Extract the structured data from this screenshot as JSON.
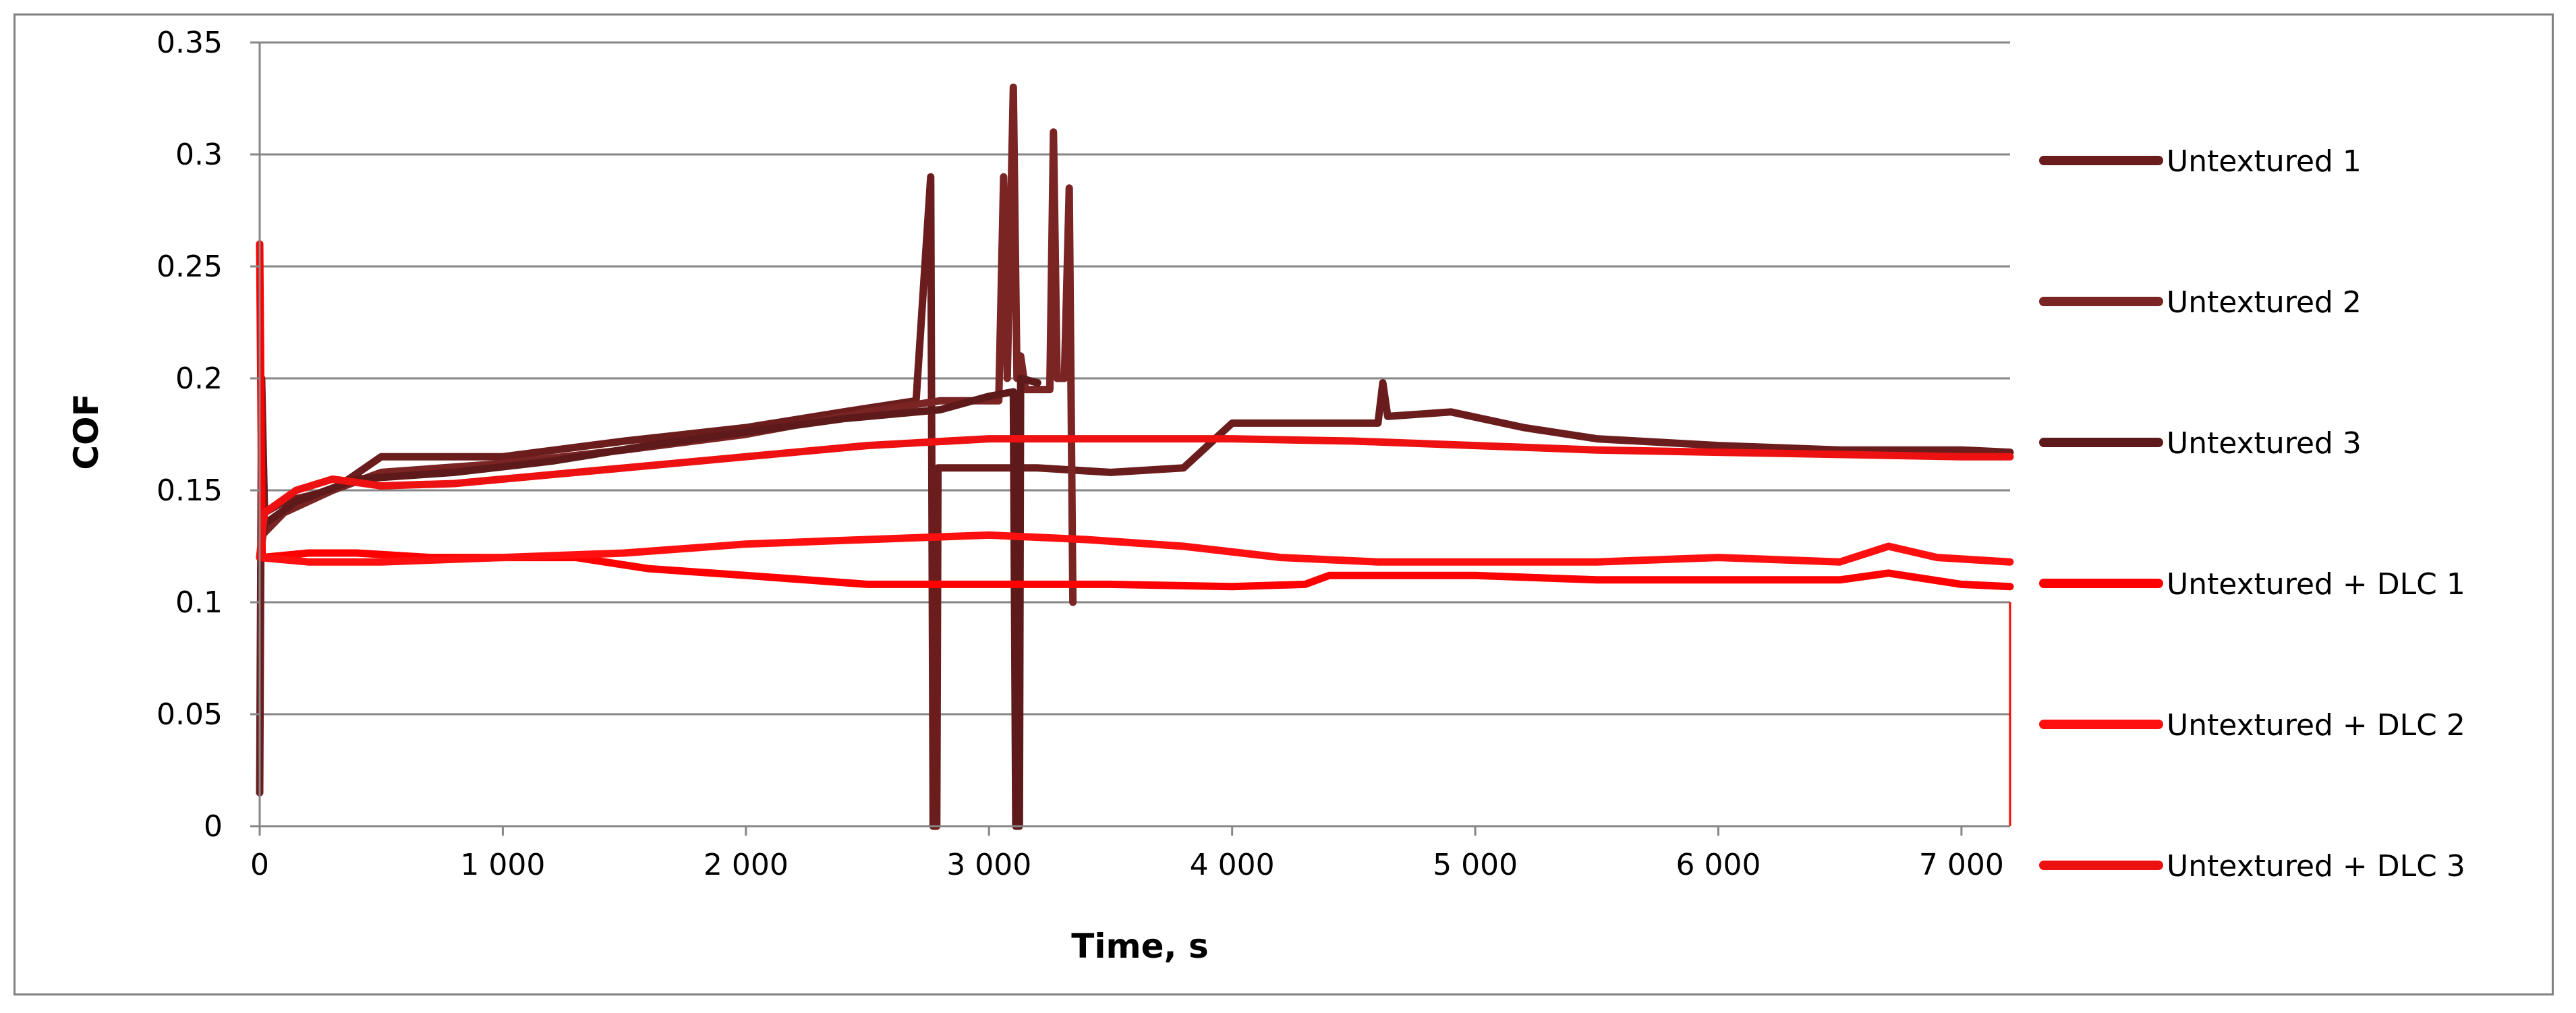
{
  "chart_data": {
    "type": "line",
    "xlabel": "Time, s",
    "ylabel": "COF",
    "xlim": [
      0,
      7200
    ],
    "ylim": [
      0,
      0.35
    ],
    "x_ticks": [
      0,
      1000,
      2000,
      3000,
      4000,
      5000,
      6000,
      7000
    ],
    "x_tick_labels": [
      "0",
      "1 000",
      "2 000",
      "3 000",
      "4 000",
      "5 000",
      "6 000",
      "7 000"
    ],
    "y_ticks": [
      0,
      0.05,
      0.1,
      0.15,
      0.2,
      0.25,
      0.3,
      0.35
    ],
    "y_tick_labels": [
      "0",
      "0.05",
      "0.1",
      "0.15",
      "0.2",
      "0.25",
      "0.3",
      "0.35"
    ],
    "grid": "horizontal",
    "legend_position": "right",
    "series": [
      {
        "name": "Untextured 1",
        "color": "#6b1d1d",
        "points": [
          [
            0,
            0.015
          ],
          [
            8,
            0.2
          ],
          [
            20,
            0.14
          ],
          [
            100,
            0.145
          ],
          [
            300,
            0.15
          ],
          [
            500,
            0.165
          ],
          [
            800,
            0.165
          ],
          [
            1000,
            0.165
          ],
          [
            1500,
            0.172
          ],
          [
            2000,
            0.178
          ],
          [
            2400,
            0.185
          ],
          [
            2700,
            0.19
          ],
          [
            2760,
            0.29
          ],
          [
            2770,
            0
          ],
          [
            2785,
            0
          ],
          [
            2790,
            0.16
          ],
          [
            3000,
            0.16
          ],
          [
            3200,
            0.16
          ],
          [
            3500,
            0.158
          ],
          [
            3800,
            0.16
          ],
          [
            3900,
            0.17
          ],
          [
            4000,
            0.18
          ],
          [
            4300,
            0.18
          ],
          [
            4500,
            0.18
          ],
          [
            4600,
            0.18
          ],
          [
            4620,
            0.198
          ],
          [
            4640,
            0.183
          ],
          [
            4900,
            0.185
          ],
          [
            5200,
            0.178
          ],
          [
            5500,
            0.173
          ],
          [
            6000,
            0.17
          ],
          [
            6500,
            0.168
          ],
          [
            7000,
            0.168
          ],
          [
            7200,
            0.167
          ]
        ]
      },
      {
        "name": "Untextured 2",
        "color": "#7a2424",
        "points": [
          [
            0,
            0.12
          ],
          [
            10,
            0.13
          ],
          [
            100,
            0.14
          ],
          [
            300,
            0.15
          ],
          [
            500,
            0.158
          ],
          [
            1000,
            0.162
          ],
          [
            1500,
            0.168
          ],
          [
            2000,
            0.175
          ],
          [
            2500,
            0.185
          ],
          [
            2800,
            0.19
          ],
          [
            3000,
            0.19
          ],
          [
            3040,
            0.19
          ],
          [
            3060,
            0.29
          ],
          [
            3075,
            0.2
          ],
          [
            3100,
            0.33
          ],
          [
            3115,
            0.2
          ],
          [
            3130,
            0.21
          ],
          [
            3150,
            0.195
          ],
          [
            3250,
            0.195
          ],
          [
            3265,
            0.31
          ],
          [
            3280,
            0.2
          ],
          [
            3310,
            0.2
          ],
          [
            3330,
            0.285
          ],
          [
            3345,
            0.1
          ]
        ]
      },
      {
        "name": "Untextured 3",
        "color": "#5e1a1a",
        "points": [
          [
            0,
            0.12
          ],
          [
            20,
            0.135
          ],
          [
            150,
            0.145
          ],
          [
            400,
            0.155
          ],
          [
            800,
            0.158
          ],
          [
            1200,
            0.163
          ],
          [
            1600,
            0.17
          ],
          [
            2000,
            0.176
          ],
          [
            2400,
            0.182
          ],
          [
            2800,
            0.186
          ],
          [
            3000,
            0.192
          ],
          [
            3100,
            0.194
          ],
          [
            3110,
            0
          ],
          [
            3125,
            0
          ],
          [
            3130,
            0.2
          ],
          [
            3200,
            0.198
          ]
        ]
      },
      {
        "name": "Untextured + DLC 1",
        "color": "#ff0000",
        "points": [
          [
            0,
            0.26
          ],
          [
            10,
            0.12
          ],
          [
            200,
            0.122
          ],
          [
            400,
            0.122
          ],
          [
            700,
            0.12
          ],
          [
            1000,
            0.12
          ],
          [
            1300,
            0.12
          ],
          [
            1600,
            0.115
          ],
          [
            2000,
            0.112
          ],
          [
            2500,
            0.108
          ],
          [
            3000,
            0.108
          ],
          [
            3500,
            0.108
          ],
          [
            4000,
            0.107
          ],
          [
            4300,
            0.108
          ],
          [
            4400,
            0.112
          ],
          [
            5000,
            0.112
          ],
          [
            5500,
            0.11
          ],
          [
            6000,
            0.11
          ],
          [
            6500,
            0.11
          ],
          [
            6700,
            0.113
          ],
          [
            7000,
            0.108
          ],
          [
            7200,
            0.107
          ]
        ]
      },
      {
        "name": "Untextured + DLC 2",
        "color": "#ff1010",
        "points": [
          [
            0,
            0.12
          ],
          [
            200,
            0.118
          ],
          [
            500,
            0.118
          ],
          [
            1000,
            0.12
          ],
          [
            1500,
            0.122
          ],
          [
            2000,
            0.126
          ],
          [
            2500,
            0.128
          ],
          [
            3000,
            0.13
          ],
          [
            3400,
            0.128
          ],
          [
            3800,
            0.125
          ],
          [
            4200,
            0.12
          ],
          [
            4600,
            0.118
          ],
          [
            5000,
            0.118
          ],
          [
            5500,
            0.118
          ],
          [
            6000,
            0.12
          ],
          [
            6500,
            0.118
          ],
          [
            6700,
            0.125
          ],
          [
            6900,
            0.12
          ],
          [
            7200,
            0.118
          ]
        ]
      },
      {
        "name": "Untextured + DLC 3",
        "color": "#ee1111",
        "points": [
          [
            0,
            0.12
          ],
          [
            20,
            0.14
          ],
          [
            150,
            0.15
          ],
          [
            300,
            0.155
          ],
          [
            500,
            0.152
          ],
          [
            800,
            0.153
          ],
          [
            1000,
            0.155
          ],
          [
            1500,
            0.16
          ],
          [
            2000,
            0.165
          ],
          [
            2500,
            0.17
          ],
          [
            3000,
            0.173
          ],
          [
            3500,
            0.173
          ],
          [
            4000,
            0.173
          ],
          [
            4500,
            0.172
          ],
          [
            5000,
            0.17
          ],
          [
            5500,
            0.168
          ],
          [
            6000,
            0.167
          ],
          [
            6500,
            0.166
          ],
          [
            7000,
            0.165
          ],
          [
            7200,
            0.165
          ]
        ]
      }
    ]
  }
}
